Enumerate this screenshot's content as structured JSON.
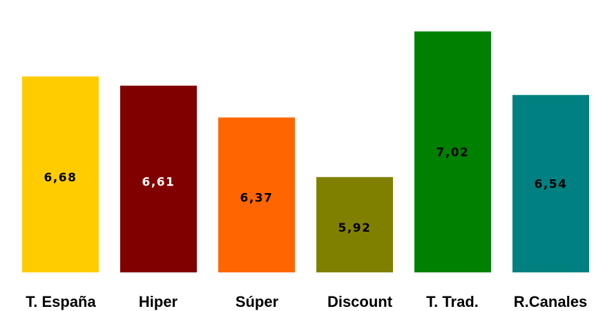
{
  "chart_data": {
    "type": "bar",
    "categories": [
      "T. España",
      "Hiper",
      "Súper",
      "Discount",
      "T. Trad.",
      "R.Canales"
    ],
    "values": [
      6.68,
      6.61,
      6.37,
      5.92,
      7.02,
      6.54
    ],
    "value_labels": [
      "6,68",
      "6,61",
      "6,37",
      "5,92",
      "7,02",
      "6,54"
    ],
    "colors": [
      "#ffcc00",
      "#800000",
      "#ff6600",
      "#808000",
      "#008000",
      "#008080"
    ],
    "label_colors": [
      "#000000",
      "#ffffff",
      "#000000",
      "#000000",
      "#000000",
      "#000000"
    ],
    "ylim": [
      5.2,
      7.2
    ],
    "grid": false,
    "title": "",
    "xlabel": "",
    "ylabel": ""
  }
}
